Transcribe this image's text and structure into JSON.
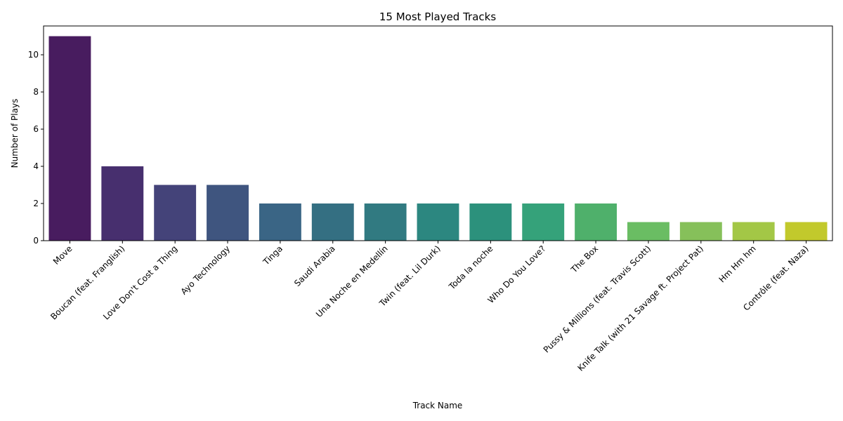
{
  "chart_data": {
    "type": "bar",
    "title": "15 Most Played Tracks",
    "xlabel": "Track Name",
    "ylabel": "Number of Plays",
    "categories": [
      "Move",
      "Boucan (feat. Franglish)",
      "Love Don't Cost a Thing",
      "Ayo Technology",
      "Tinga",
      "Saudi Arabia",
      "Una Noche en Medellín",
      "Twin (feat. Lil Durk)",
      "Toda la noche",
      "Who Do You Love?",
      "The Box",
      "Pussy & Millions (feat. Travis Scott)",
      "Knife Talk (with 21 Savage ft. Project Pat)",
      "Hm Hm hm",
      "Contrôle (feat. Naza)"
    ],
    "values": [
      11,
      4,
      3,
      3,
      2,
      2,
      2,
      2,
      2,
      2,
      2,
      1,
      1,
      1,
      1
    ],
    "ylim": [
      0,
      11.55
    ],
    "yticks": [
      0,
      2,
      4,
      6,
      8,
      10
    ],
    "grid": false,
    "colors": [
      "#481c5f",
      "#472f6e",
      "#444379",
      "#3f557f",
      "#3a6585",
      "#346f82",
      "#317a81",
      "#2c8780",
      "#2c917c",
      "#35a27a",
      "#4fb06b",
      "#6abd63",
      "#86c05a",
      "#a3c746",
      "#c2c92c"
    ]
  }
}
